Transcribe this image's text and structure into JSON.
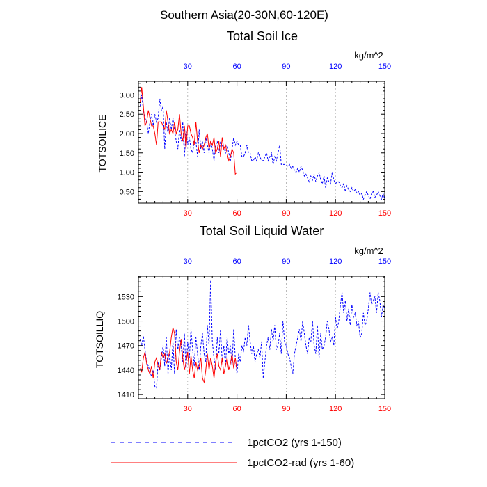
{
  "figure": {
    "region_title": "Southern Asia(20-30N,60-120E)"
  },
  "colors": {
    "series_1": "#0000ff",
    "series_2": "#ff0000",
    "grid": "#aaaaaa",
    "axis": "#000000"
  },
  "chart_data": [
    {
      "type": "line",
      "title": "Total Soil Ice",
      "units": "kg/m^2",
      "ylabel": "TOTSOILICE",
      "xlabel": "",
      "xlim": [
        0,
        150
      ],
      "ylim": [
        0.2,
        3.35
      ],
      "xticks": [
        30,
        60,
        90,
        120,
        150
      ],
      "xtick_labels": [
        "30",
        "60",
        "90",
        "120",
        "150"
      ],
      "xtick_labels_top_color": "#0000ff",
      "xtick_labels_bottom_color": "#ff0000",
      "yticks": [
        0.5,
        1.0,
        1.5,
        2.0,
        2.5,
        3.0
      ],
      "ytick_labels": [
        "0.50",
        "1.00",
        "1.50",
        "2.00",
        "2.50",
        "3.00"
      ],
      "grid": "vertical dashed at x ticks",
      "series": [
        {
          "name": "1pctCO2 (yrs 1-150)",
          "color": "#0000ff",
          "dash": "dashed",
          "x": [
            1,
            2,
            3,
            4,
            5,
            6,
            7,
            8,
            9,
            10,
            11,
            12,
            13,
            14,
            15,
            16,
            17,
            18,
            19,
            20,
            21,
            22,
            23,
            24,
            25,
            26,
            27,
            28,
            29,
            30,
            31,
            32,
            33,
            34,
            35,
            36,
            37,
            38,
            39,
            40,
            41,
            42,
            43,
            44,
            45,
            46,
            47,
            48,
            49,
            50,
            51,
            52,
            53,
            54,
            55,
            56,
            57,
            58,
            59,
            60,
            61,
            62,
            63,
            64,
            65,
            66,
            67,
            68,
            69,
            70,
            71,
            72,
            73,
            74,
            75,
            76,
            77,
            78,
            79,
            80,
            81,
            82,
            83,
            84,
            85,
            86,
            87,
            88,
            89,
            90,
            91,
            92,
            93,
            94,
            95,
            96,
            97,
            98,
            99,
            100,
            101,
            102,
            103,
            104,
            105,
            106,
            107,
            108,
            109,
            110,
            111,
            112,
            113,
            114,
            115,
            116,
            117,
            118,
            119,
            120,
            121,
            122,
            123,
            124,
            125,
            126,
            127,
            128,
            129,
            130,
            131,
            132,
            133,
            134,
            135,
            136,
            137,
            138,
            139,
            140,
            141,
            142,
            143,
            144,
            145,
            146,
            147,
            148,
            149,
            150
          ],
          "y": [
            2.7,
            3.0,
            2.6,
            2.4,
            2.3,
            2.0,
            2.3,
            2.5,
            2.2,
            2.5,
            2.3,
            2.4,
            2.9,
            2.6,
            2.7,
            1.6,
            2.3,
            2.0,
            2.4,
            2.1,
            2.4,
            2.1,
            1.8,
            1.6,
            2.1,
            1.8,
            2.3,
            1.4,
            2.1,
            1.7,
            1.9,
            1.6,
            1.5,
            1.8,
            1.8,
            1.4,
            2.1,
            1.6,
            1.8,
            1.5,
            1.9,
            1.7,
            1.5,
            1.8,
            1.6,
            1.3,
            1.7,
            1.8,
            1.5,
            1.8,
            1.7,
            1.6,
            1.5,
            1.7,
            1.5,
            1.3,
            1.6,
            1.9,
            1.7,
            1.8,
            1.7,
            1.7,
            1.4,
            1.4,
            1.5,
            1.7,
            1.5,
            1.5,
            1.3,
            1.3,
            1.4,
            1.3,
            1.5,
            1.4,
            1.3,
            1.3,
            1.4,
            1.5,
            1.3,
            1.4,
            1.5,
            1.2,
            1.4,
            1.3,
            1.5,
            1.7,
            1.2,
            1.2,
            1.2,
            1.2,
            1.15,
            1.2,
            1.1,
            1.15,
            1.05,
            1.0,
            1.1,
            1.0,
            1.15,
            1.05,
            0.9,
            0.95,
            0.85,
            0.75,
            0.9,
            0.8,
            0.95,
            0.75,
            0.9,
            1.0,
            0.8,
            0.7,
            0.9,
            0.6,
            0.85,
            0.75,
            0.7,
            1.0,
            0.8,
            0.7,
            0.75,
            0.75,
            0.65,
            0.6,
            0.7,
            0.5,
            0.65,
            0.55,
            0.5,
            0.6,
            0.5,
            0.55,
            0.45,
            0.5,
            0.4,
            0.45,
            0.3,
            0.4,
            0.5,
            0.4,
            0.3,
            0.45,
            0.5,
            0.35,
            0.4,
            0.5,
            0.4,
            0.3,
            0.45,
            0.3
          ]
        },
        {
          "name": "1pctCO2-rad (yrs 1-60)",
          "color": "#ff0000",
          "dash": "solid",
          "x": [
            1,
            2,
            3,
            4,
            5,
            6,
            7,
            8,
            9,
            10,
            11,
            12,
            13,
            14,
            15,
            16,
            17,
            18,
            19,
            20,
            21,
            22,
            23,
            24,
            25,
            26,
            27,
            28,
            29,
            30,
            31,
            32,
            33,
            34,
            35,
            36,
            37,
            38,
            39,
            40,
            41,
            42,
            43,
            44,
            45,
            46,
            47,
            48,
            49,
            50,
            51,
            52,
            53,
            54,
            55,
            56,
            57,
            58,
            59,
            60
          ],
          "y": [
            2.8,
            3.2,
            2.7,
            2.2,
            2.3,
            2.6,
            2.4,
            2.2,
            2.2,
            2.0,
            1.7,
            2.3,
            2.3,
            2.3,
            2.2,
            2.1,
            2.6,
            2.3,
            2.0,
            2.1,
            2.0,
            2.3,
            2.0,
            2.1,
            2.5,
            2.0,
            1.8,
            2.2,
            1.6,
            2.2,
            2.2,
            2.0,
            1.9,
            1.7,
            2.3,
            1.8,
            1.5,
            1.7,
            1.6,
            1.7,
            1.9,
            2.0,
            1.6,
            1.8,
            1.7,
            1.9,
            1.5,
            1.6,
            1.8,
            1.4,
            1.9,
            1.6,
            1.7,
            1.5,
            1.3,
            1.4,
            1.6,
            1.5,
            0.95,
            1.0
          ]
        }
      ]
    },
    {
      "type": "line",
      "title": "Total Soil Liquid Water",
      "units": "kg/m^2",
      "ylabel": "TOTSOILLIQ",
      "xlabel": "",
      "xlim": [
        0,
        150
      ],
      "ylim": [
        1405,
        1555
      ],
      "xticks": [
        30,
        60,
        90,
        120,
        150
      ],
      "xtick_labels": [
        "30",
        "60",
        "90",
        "120",
        "150"
      ],
      "xtick_labels_top_color": "#0000ff",
      "xtick_labels_bottom_color": "#ff0000",
      "yticks": [
        1410,
        1440,
        1470,
        1500,
        1530
      ],
      "ytick_labels": [
        "1410",
        "1440",
        "1470",
        "1500",
        "1530"
      ],
      "grid": "vertical dashed at x ticks",
      "series": [
        {
          "name": "1pctCO2 (yrs 1-150)",
          "color": "#0000ff",
          "dash": "dashed",
          "x": [
            1,
            2,
            3,
            4,
            5,
            6,
            7,
            8,
            9,
            10,
            11,
            12,
            13,
            14,
            15,
            16,
            17,
            18,
            19,
            20,
            21,
            22,
            23,
            24,
            25,
            26,
            27,
            28,
            29,
            30,
            31,
            32,
            33,
            34,
            35,
            36,
            37,
            38,
            39,
            40,
            41,
            42,
            43,
            44,
            45,
            46,
            47,
            48,
            49,
            50,
            51,
            52,
            53,
            54,
            55,
            56,
            57,
            58,
            59,
            60,
            61,
            62,
            63,
            64,
            65,
            66,
            67,
            68,
            69,
            70,
            71,
            72,
            73,
            74,
            75,
            76,
            77,
            78,
            79,
            80,
            81,
            82,
            83,
            84,
            85,
            86,
            87,
            88,
            89,
            90,
            91,
            92,
            93,
            94,
            95,
            96,
            97,
            98,
            99,
            100,
            101,
            102,
            103,
            104,
            105,
            106,
            107,
            108,
            109,
            110,
            111,
            112,
            113,
            114,
            115,
            116,
            117,
            118,
            119,
            120,
            121,
            122,
            123,
            124,
            125,
            126,
            127,
            128,
            129,
            130,
            131,
            132,
            133,
            134,
            135,
            136,
            137,
            138,
            139,
            140,
            141,
            142,
            143,
            144,
            145,
            146,
            147,
            148,
            149,
            150
          ],
          "y": [
            1478,
            1470,
            1482,
            1465,
            1450,
            1445,
            1438,
            1432,
            1440,
            1420,
            1418,
            1450,
            1440,
            1455,
            1470,
            1445,
            1480,
            1435,
            1460,
            1440,
            1475,
            1435,
            1490,
            1465,
            1480,
            1470,
            1450,
            1485,
            1440,
            1475,
            1455,
            1490,
            1465,
            1445,
            1480,
            1460,
            1440,
            1470,
            1485,
            1460,
            1450,
            1495,
            1470,
            1550,
            1475,
            1455,
            1440,
            1480,
            1460,
            1490,
            1450,
            1470,
            1445,
            1480,
            1460,
            1470,
            1445,
            1490,
            1455,
            1435,
            1460,
            1450,
            1470,
            1462,
            1480,
            1470,
            1495,
            1475,
            1460,
            1470,
            1450,
            1460,
            1465,
            1455,
            1475,
            1430,
            1450,
            1470,
            1480,
            1465,
            1490,
            1475,
            1495,
            1465,
            1470,
            1485,
            1460,
            1500,
            1475,
            1470,
            1460,
            1455,
            1445,
            1435,
            1460,
            1470,
            1480,
            1490,
            1475,
            1500,
            1485,
            1470,
            1460,
            1480,
            1475,
            1500,
            1470,
            1460,
            1495,
            1455,
            1485,
            1465,
            1470,
            1480,
            1500,
            1490,
            1475,
            1480,
            1470,
            1505,
            1490,
            1500,
            1520,
            1535,
            1510,
            1525,
            1500,
            1515,
            1495,
            1520,
            1505,
            1510,
            1495,
            1500,
            1480,
            1485,
            1510,
            1495,
            1500,
            1515,
            1535,
            1520,
            1525,
            1530,
            1510,
            1535,
            1525,
            1505,
            1520,
            1515
          ]
        },
        {
          "name": "1pctCO2-rad (yrs 1-60)",
          "color": "#ff0000",
          "dash": "solid",
          "x": [
            1,
            2,
            3,
            4,
            5,
            6,
            7,
            8,
            9,
            10,
            11,
            12,
            13,
            14,
            15,
            16,
            17,
            18,
            19,
            20,
            21,
            22,
            23,
            24,
            25,
            26,
            27,
            28,
            29,
            30,
            31,
            32,
            33,
            34,
            35,
            36,
            37,
            38,
            39,
            40,
            41,
            42,
            43,
            44,
            45,
            46,
            47,
            48,
            49,
            50,
            51,
            52,
            53,
            54,
            55,
            56,
            57,
            58,
            59,
            60
          ],
          "y": [
            1442,
            1438,
            1455,
            1462,
            1448,
            1440,
            1435,
            1445,
            1430,
            1450,
            1455,
            1445,
            1440,
            1462,
            1455,
            1460,
            1448,
            1455,
            1462,
            1480,
            1492,
            1485,
            1450,
            1440,
            1462,
            1478,
            1455,
            1440,
            1450,
            1462,
            1435,
            1458,
            1440,
            1430,
            1450,
            1440,
            1445,
            1455,
            1430,
            1425,
            1440,
            1460,
            1440,
            1455,
            1445,
            1430,
            1450,
            1460,
            1445,
            1440,
            1455,
            1435,
            1445,
            1455,
            1440,
            1448,
            1460,
            1442,
            1455,
            1440
          ]
        }
      ]
    }
  ],
  "legend": {
    "placement": "bottom",
    "entries": [
      {
        "label": "1pctCO2 (yrs 1-150)",
        "color": "#0000ff",
        "dash": "dashed"
      },
      {
        "label": "1pctCO2-rad (yrs 1-60)",
        "color": "#ff0000",
        "dash": "solid"
      }
    ]
  }
}
